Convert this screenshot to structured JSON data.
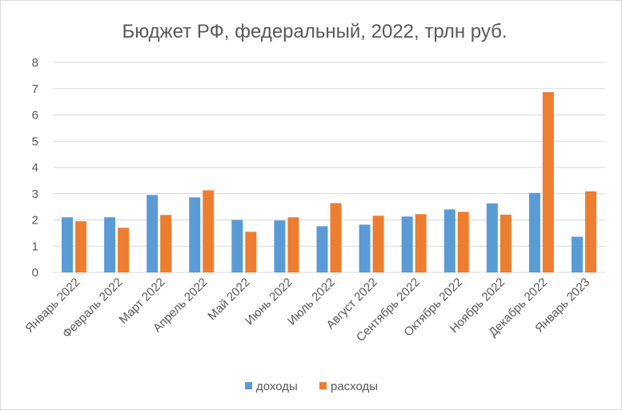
{
  "chart_data": {
    "type": "bar",
    "title": "Бюджет РФ, федеральный, 2022, трлн руб.",
    "xlabel": "",
    "ylabel": "",
    "ylim": [
      0,
      8
    ],
    "yticks": [
      "0",
      "1",
      "2",
      "3",
      "4",
      "5",
      "6",
      "7",
      "8"
    ],
    "grid": true,
    "legend_position": "bottom",
    "categories": [
      "Январь 2022",
      "Февраль 2022",
      "Март 2022",
      "Апрель 2022",
      "Май 2022",
      "Июнь 2022",
      "Июль 2022",
      "Август 2022",
      "Сентябрь 2022",
      "Октябрь 2022",
      "Ноябрь 2022",
      "Декабрь 2022",
      "Январь 2023"
    ],
    "series": [
      {
        "name": "доходы",
        "color": "#5b9bd5",
        "values": [
          2.1,
          2.1,
          2.95,
          2.86,
          2.0,
          1.98,
          1.76,
          1.82,
          2.13,
          2.4,
          2.63,
          3.03,
          1.36
        ]
      },
      {
        "name": "расходы",
        "color": "#ed7d31",
        "values": [
          1.95,
          1.7,
          2.19,
          3.13,
          1.55,
          2.1,
          2.64,
          2.16,
          2.22,
          2.31,
          2.2,
          6.87,
          3.09
        ]
      }
    ]
  }
}
